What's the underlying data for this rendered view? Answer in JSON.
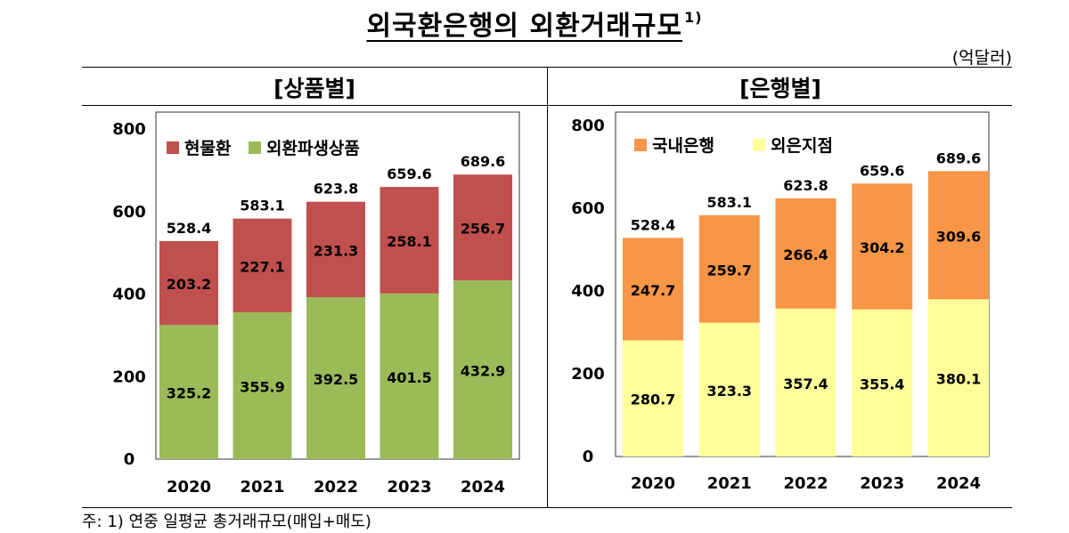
{
  "title": {
    "main": "외국환은행의 외환거래규모",
    "note_mark": "1)"
  },
  "unit": "(억달러)",
  "footnote": "주: 1) 연중 일평균 총거래규모(매입+매도)",
  "chart_data": [
    {
      "type": "bar",
      "stacked": true,
      "title": "[상품별]",
      "categories": [
        "2020",
        "2021",
        "2022",
        "2023",
        "2024"
      ],
      "ylim": [
        0,
        800
      ],
      "yticks": [
        0,
        200,
        400,
        600,
        800
      ],
      "grid": false,
      "legend_position": "top-left",
      "series": [
        {
          "name": "외환파생상품",
          "values": [
            325.2,
            355.9,
            392.5,
            401.5,
            432.9
          ],
          "color": "#9BBB59"
        },
        {
          "name": "현물환",
          "values": [
            203.2,
            227.1,
            231.3,
            258.1,
            256.7
          ],
          "color": "#C0504D"
        }
      ],
      "totals": [
        528.4,
        583.1,
        623.8,
        659.6,
        689.6
      ],
      "legend_order": [
        1,
        0
      ]
    },
    {
      "type": "bar",
      "stacked": true,
      "title": "[은행별]",
      "categories": [
        "2020",
        "2021",
        "2022",
        "2023",
        "2024"
      ],
      "ylim": [
        0,
        800
      ],
      "yticks": [
        0,
        200,
        400,
        600,
        800
      ],
      "grid": false,
      "legend_position": "top-left",
      "series": [
        {
          "name": "외은지점",
          "values": [
            280.7,
            323.3,
            357.4,
            355.4,
            380.1
          ],
          "color": "#FFFF99"
        },
        {
          "name": "국내은행",
          "values": [
            247.7,
            259.7,
            266.4,
            304.2,
            309.6
          ],
          "color": "#F79646"
        }
      ],
      "totals": [
        528.4,
        583.1,
        623.8,
        659.6,
        689.6
      ],
      "legend_order": [
        1,
        0
      ]
    }
  ]
}
